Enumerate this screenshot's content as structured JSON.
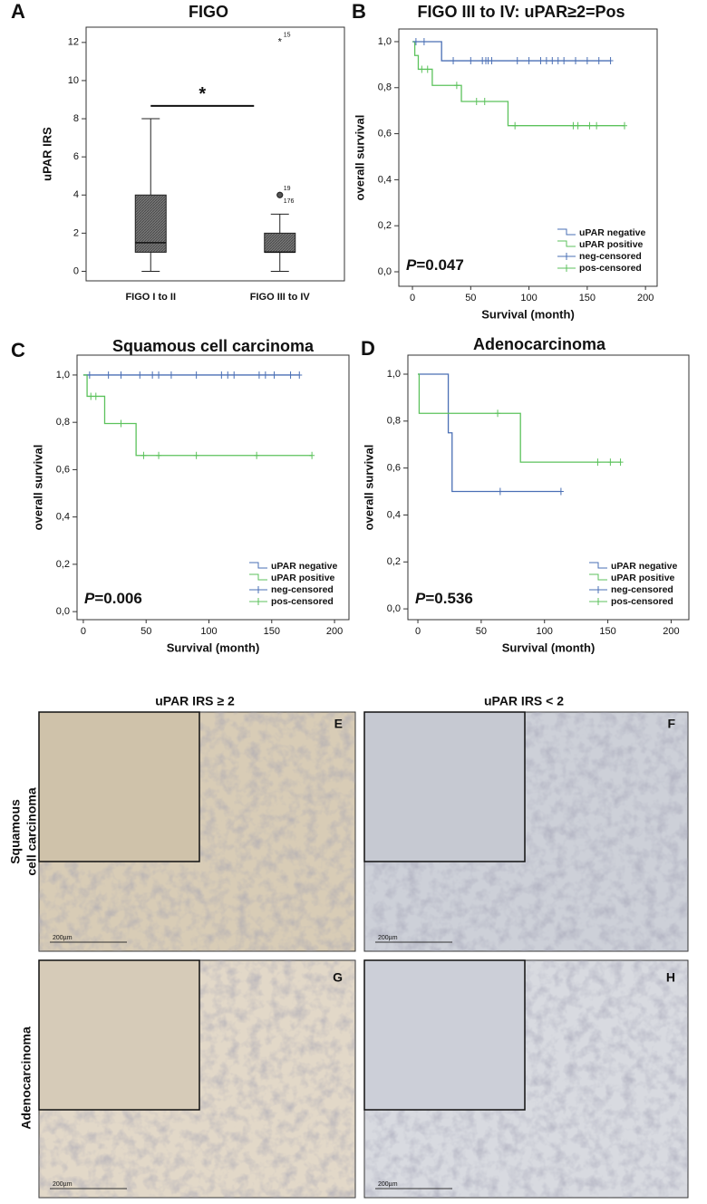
{
  "figure": {
    "panel_labels": [
      "A",
      "B",
      "C",
      "D",
      "E",
      "F",
      "G",
      "H"
    ],
    "column_headers": [
      "uPAR IRS ≥ 2",
      "uPAR IRS < 2"
    ],
    "row_headers": [
      [
        "Squamous",
        "cell carcinoma"
      ],
      [
        "Adenocarcinoma"
      ]
    ],
    "scale_bar": "200µm"
  },
  "chart_data": [
    {
      "type": "box",
      "title": "FIGO",
      "y_label": "uPAR IRS",
      "categories": [
        "FIGO I to II",
        "FIGO III to IV"
      ],
      "boxes": [
        {
          "min": 0,
          "q1": 1,
          "median": 1.5,
          "q3": 4,
          "max": 8
        },
        {
          "min": 0,
          "q1": 1,
          "median": 1,
          "q3": 2,
          "max": 3,
          "outliers": [
            {
              "value": 4,
              "label": "19"
            },
            {
              "value": 4,
              "label": "176"
            }
          ],
          "extremes": [
            {
              "value": 12,
              "label": "15"
            }
          ]
        }
      ],
      "color": "#666666",
      "ylim": [
        -0.5,
        12.8
      ],
      "yticks": [
        0,
        2,
        4,
        6,
        8,
        10,
        12
      ],
      "significance": "*"
    },
    {
      "type": "step",
      "title": "FIGO III to IV: uPAR≥2=Pos",
      "x_label": "Survival (month)",
      "y_label": "overall survival",
      "xlim": [
        -11.7,
        210
      ],
      "ylim": [
        -0.063,
        1.055
      ],
      "xticks": [
        0,
        50,
        100,
        150,
        200
      ],
      "yticks": [
        {
          "value": 0,
          "label": "0,0"
        },
        {
          "value": 0.2,
          "label": "0,2"
        },
        {
          "value": 0.4,
          "label": "0,4"
        },
        {
          "value": 0.6,
          "label": "0,6"
        },
        {
          "value": 0.8,
          "label": "0,8"
        },
        {
          "value": 1,
          "label": "1,0"
        }
      ],
      "legend": "lower right",
      "p_prefix": "P",
      "p_value": "=0.047",
      "series": [
        {
          "name": "uPAR negative",
          "color": "#4a6fb5",
          "x": [
            0,
            25,
            170
          ],
          "y": [
            1,
            0.917,
            0.917
          ]
        },
        {
          "name": "uPAR positive",
          "color": "#5cc25c",
          "x": [
            0,
            2,
            5,
            17,
            42,
            82,
            182
          ],
          "y": [
            1,
            0.94,
            0.88,
            0.81,
            0.74,
            0.635,
            0.635
          ]
        },
        {
          "name": "neg-censored",
          "color": "#4a6fb5",
          "marker": "+",
          "x": [
            3,
            10,
            35,
            50,
            60,
            63,
            65,
            68,
            90,
            100,
            110,
            115,
            120,
            125,
            130,
            140,
            150,
            160,
            170
          ],
          "y": [
            1,
            1,
            0.917,
            0.917,
            0.917,
            0.917,
            0.917,
            0.917,
            0.917,
            0.917,
            0.917,
            0.917,
            0.917,
            0.917,
            0.917,
            0.917,
            0.917,
            0.917,
            0.917
          ]
        },
        {
          "name": "pos-censored",
          "color": "#5cc25c",
          "marker": "+",
          "x": [
            8,
            13,
            38,
            55,
            62,
            88,
            138,
            142,
            152,
            158,
            182
          ],
          "y": [
            0.88,
            0.88,
            0.81,
            0.74,
            0.74,
            0.635,
            0.635,
            0.635,
            0.635,
            0.635,
            0.635
          ]
        }
      ]
    },
    {
      "type": "step",
      "title": "Squamous cell carcinoma",
      "x_label": "Survival (month)",
      "y_label": "overall survival",
      "xlim": [
        -5,
        211.5
      ],
      "ylim": [
        -0.034,
        1.084
      ],
      "xticks": [
        0,
        50,
        100,
        150,
        200
      ],
      "yticks": [
        {
          "value": 0,
          "label": "0,0"
        },
        {
          "value": 0.2,
          "label": "0,2"
        },
        {
          "value": 0.4,
          "label": "0,4"
        },
        {
          "value": 0.6,
          "label": "0,6"
        },
        {
          "value": 0.8,
          "label": "0,8"
        },
        {
          "value": 1,
          "label": "1,0"
        }
      ],
      "legend": "lower right",
      "p_prefix": "P",
      "p_value": "=0.006",
      "series": [
        {
          "name": "uPAR negative",
          "color": "#4a6fb5",
          "x": [
            0,
            172
          ],
          "y": [
            1,
            1
          ]
        },
        {
          "name": "uPAR positive",
          "color": "#5cc25c",
          "x": [
            0,
            3,
            17,
            42,
            182
          ],
          "y": [
            1,
            0.91,
            0.795,
            0.66,
            0.66
          ]
        },
        {
          "name": "neg-censored",
          "color": "#4a6fb5",
          "marker": "+",
          "x": [
            5,
            20,
            30,
            45,
            55,
            60,
            70,
            90,
            110,
            115,
            120,
            140,
            145,
            152,
            165,
            172
          ],
          "y": [
            1,
            1,
            1,
            1,
            1,
            1,
            1,
            1,
            1,
            1,
            1,
            1,
            1,
            1,
            1,
            1
          ]
        },
        {
          "name": "pos-censored",
          "color": "#5cc25c",
          "marker": "+",
          "x": [
            6,
            10,
            30,
            48,
            60,
            90,
            138,
            182
          ],
          "y": [
            0.91,
            0.91,
            0.795,
            0.66,
            0.66,
            0.66,
            0.66,
            0.66
          ]
        }
      ]
    },
    {
      "type": "step",
      "title": "Adenocarcinoma",
      "x_label": "Survival (month)",
      "y_label": "overall survival",
      "xlim": [
        -7.9,
        214
      ],
      "ylim": [
        -0.046,
        1.081
      ],
      "xticks": [
        0,
        50,
        100,
        150,
        200
      ],
      "yticks": [
        {
          "value": 0,
          "label": "0,0"
        },
        {
          "value": 0.2,
          "label": "0,2"
        },
        {
          "value": 0.4,
          "label": "0,4"
        },
        {
          "value": 0.6,
          "label": "0,6"
        },
        {
          "value": 0.8,
          "label": "0,8"
        },
        {
          "value": 1,
          "label": "1,0"
        }
      ],
      "legend": "lower right",
      "p_prefix": "P",
      "p_value": "=0.536",
      "series": [
        {
          "name": "uPAR negative",
          "color": "#4a6fb5",
          "x": [
            0,
            24,
            27,
            113
          ],
          "y": [
            1,
            0.75,
            0.5,
            0.5
          ]
        },
        {
          "name": "uPAR positive",
          "color": "#5cc25c",
          "x": [
            0,
            1,
            81,
            160
          ],
          "y": [
            1,
            0.833,
            0.625,
            0.625
          ]
        },
        {
          "name": "neg-censored",
          "color": "#4a6fb5",
          "marker": "+",
          "x": [
            65,
            113
          ],
          "y": [
            0.5,
            0.5
          ]
        },
        {
          "name": "pos-censored",
          "color": "#5cc25c",
          "marker": "+",
          "x": [
            63,
            142,
            152,
            160
          ],
          "y": [
            0.833,
            0.625,
            0.625,
            0.625
          ]
        }
      ]
    }
  ]
}
